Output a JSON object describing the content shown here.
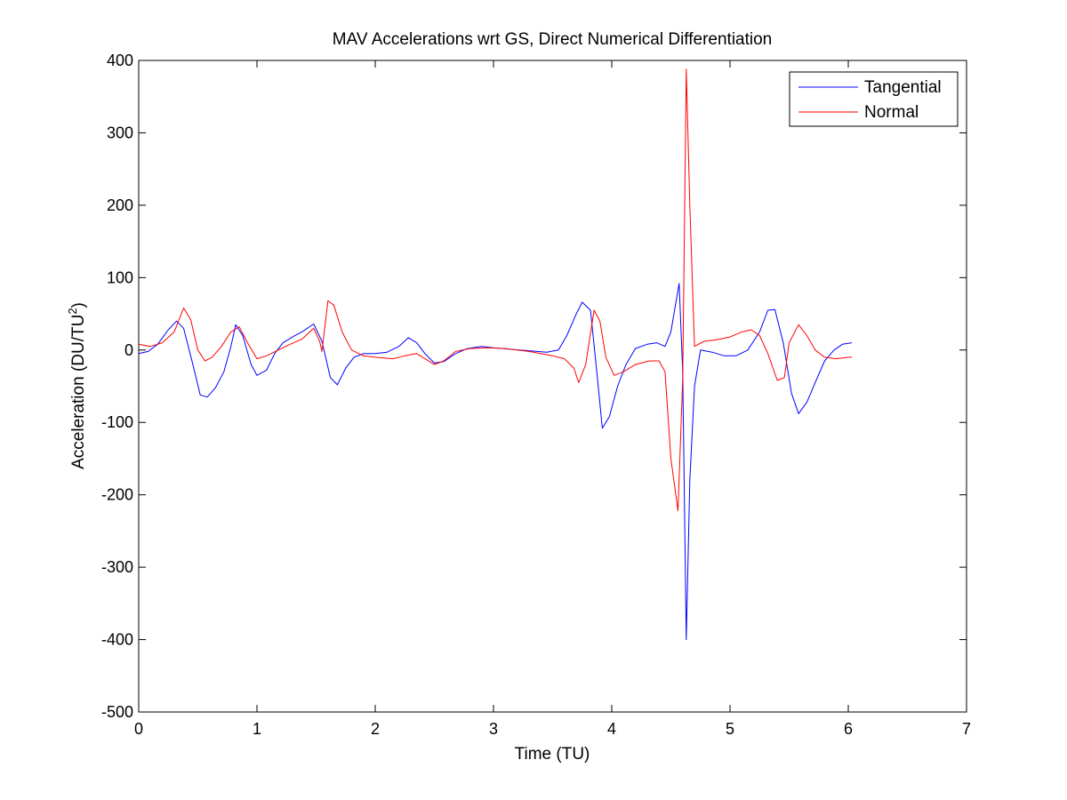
{
  "chart_data": {
    "type": "line",
    "title": "MAV Accelerations wrt GS, Direct Numerical Differentiation",
    "xlabel": "Time (TU)",
    "ylabel_base": "Acceleration (DU/TU",
    "ylabel_sup": "2",
    "ylabel_end": ")",
    "xlim": [
      0,
      7
    ],
    "ylim": [
      -500,
      400
    ],
    "xticks": [
      0,
      1,
      2,
      3,
      4,
      5,
      6,
      7
    ],
    "yticks": [
      400,
      300,
      200,
      100,
      0,
      -100,
      -200,
      -300,
      -400,
      -500
    ],
    "grid": false,
    "legend_position": "top-right",
    "series": [
      {
        "name": "Tangential",
        "color": "#0000ff",
        "points": [
          [
            0,
            -5
          ],
          [
            0.08,
            -2
          ],
          [
            0.16,
            8
          ],
          [
            0.25,
            28
          ],
          [
            0.32,
            40
          ],
          [
            0.38,
            30
          ],
          [
            0.45,
            -15
          ],
          [
            0.52,
            -62
          ],
          [
            0.58,
            -65
          ],
          [
            0.65,
            -52
          ],
          [
            0.72,
            -30
          ],
          [
            0.78,
            5
          ],
          [
            0.82,
            35
          ],
          [
            0.88,
            20
          ],
          [
            0.95,
            -20
          ],
          [
            1.0,
            -35
          ],
          [
            1.08,
            -28
          ],
          [
            1.15,
            -5
          ],
          [
            1.22,
            10
          ],
          [
            1.3,
            18
          ],
          [
            1.38,
            25
          ],
          [
            1.48,
            36
          ],
          [
            1.55,
            12
          ],
          [
            1.62,
            -38
          ],
          [
            1.68,
            -48
          ],
          [
            1.75,
            -25
          ],
          [
            1.82,
            -10
          ],
          [
            1.9,
            -5
          ],
          [
            2.0,
            -5
          ],
          [
            2.1,
            -3
          ],
          [
            2.2,
            5
          ],
          [
            2.28,
            17
          ],
          [
            2.35,
            10
          ],
          [
            2.42,
            -5
          ],
          [
            2.5,
            -18
          ],
          [
            2.58,
            -16
          ],
          [
            2.68,
            -5
          ],
          [
            2.78,
            2
          ],
          [
            2.9,
            5
          ],
          [
            3.0,
            3
          ],
          [
            3.15,
            1
          ],
          [
            3.3,
            -1
          ],
          [
            3.45,
            -3
          ],
          [
            3.55,
            0
          ],
          [
            3.62,
            20
          ],
          [
            3.7,
            50
          ],
          [
            3.75,
            66
          ],
          [
            3.82,
            55
          ],
          [
            3.88,
            -40
          ],
          [
            3.92,
            -108
          ],
          [
            3.98,
            -92
          ],
          [
            4.05,
            -50
          ],
          [
            4.12,
            -20
          ],
          [
            4.2,
            2
          ],
          [
            4.3,
            8
          ],
          [
            4.38,
            10
          ],
          [
            4.45,
            5
          ],
          [
            4.5,
            25
          ],
          [
            4.57,
            92
          ],
          [
            4.6,
            -30
          ],
          [
            4.63,
            -400
          ],
          [
            4.66,
            -180
          ],
          [
            4.7,
            -50
          ],
          [
            4.75,
            0
          ],
          [
            4.85,
            -3
          ],
          [
            4.95,
            -8
          ],
          [
            5.05,
            -8
          ],
          [
            5.15,
            0
          ],
          [
            5.25,
            25
          ],
          [
            5.32,
            55
          ],
          [
            5.38,
            56
          ],
          [
            5.45,
            10
          ],
          [
            5.52,
            -60
          ],
          [
            5.58,
            -88
          ],
          [
            5.65,
            -72
          ],
          [
            5.72,
            -45
          ],
          [
            5.8,
            -15
          ],
          [
            5.88,
            0
          ],
          [
            5.95,
            8
          ],
          [
            6.03,
            10
          ]
        ]
      },
      {
        "name": "Normal",
        "color": "#ff0000",
        "points": [
          [
            0,
            8
          ],
          [
            0.1,
            5
          ],
          [
            0.2,
            10
          ],
          [
            0.3,
            25
          ],
          [
            0.38,
            58
          ],
          [
            0.44,
            42
          ],
          [
            0.5,
            0
          ],
          [
            0.56,
            -15
          ],
          [
            0.62,
            -10
          ],
          [
            0.7,
            5
          ],
          [
            0.78,
            25
          ],
          [
            0.85,
            32
          ],
          [
            0.92,
            10
          ],
          [
            1.0,
            -12
          ],
          [
            1.08,
            -8
          ],
          [
            1.18,
            0
          ],
          [
            1.28,
            8
          ],
          [
            1.38,
            15
          ],
          [
            1.48,
            30
          ],
          [
            1.53,
            12
          ],
          [
            1.55,
            -2
          ],
          [
            1.6,
            68
          ],
          [
            1.65,
            62
          ],
          [
            1.72,
            25
          ],
          [
            1.8,
            0
          ],
          [
            1.9,
            -8
          ],
          [
            2.0,
            -10
          ],
          [
            2.15,
            -12
          ],
          [
            2.25,
            -8
          ],
          [
            2.35,
            -5
          ],
          [
            2.42,
            -12
          ],
          [
            2.5,
            -20
          ],
          [
            2.58,
            -15
          ],
          [
            2.68,
            -2
          ],
          [
            2.8,
            2
          ],
          [
            2.95,
            3
          ],
          [
            3.1,
            2
          ],
          [
            3.3,
            -2
          ],
          [
            3.5,
            -8
          ],
          [
            3.6,
            -12
          ],
          [
            3.68,
            -25
          ],
          [
            3.72,
            -45
          ],
          [
            3.78,
            -20
          ],
          [
            3.85,
            55
          ],
          [
            3.9,
            40
          ],
          [
            3.95,
            -10
          ],
          [
            4.02,
            -35
          ],
          [
            4.1,
            -30
          ],
          [
            4.2,
            -20
          ],
          [
            4.32,
            -15
          ],
          [
            4.4,
            -15
          ],
          [
            4.45,
            -30
          ],
          [
            4.5,
            -150
          ],
          [
            4.56,
            -222
          ],
          [
            4.6,
            -40
          ],
          [
            4.63,
            388
          ],
          [
            4.66,
            200
          ],
          [
            4.7,
            5
          ],
          [
            4.78,
            12
          ],
          [
            4.88,
            14
          ],
          [
            5.0,
            18
          ],
          [
            5.1,
            25
          ],
          [
            5.18,
            28
          ],
          [
            5.25,
            20
          ],
          [
            5.32,
            -5
          ],
          [
            5.4,
            -42
          ],
          [
            5.46,
            -38
          ],
          [
            5.5,
            10
          ],
          [
            5.58,
            35
          ],
          [
            5.65,
            20
          ],
          [
            5.72,
            0
          ],
          [
            5.8,
            -10
          ],
          [
            5.9,
            -12
          ],
          [
            6.0,
            -10
          ],
          [
            6.03,
            -10
          ]
        ]
      }
    ]
  }
}
